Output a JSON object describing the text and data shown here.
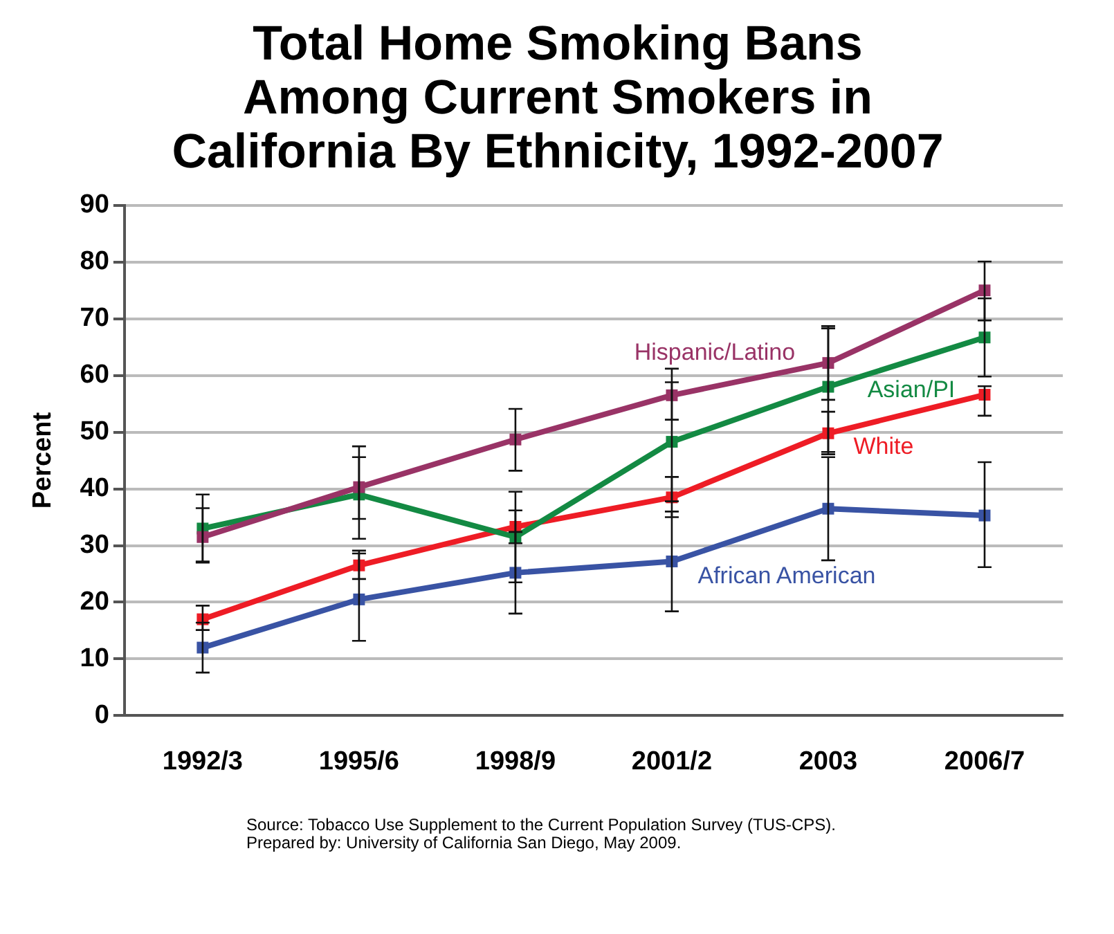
{
  "chart_data": {
    "type": "line",
    "title": "Total Home Smoking Bans Among Current Smokers in California By Ethnicity, 1992-2007",
    "ylabel": "Percent",
    "categories": [
      "1992/3",
      "1995/6",
      "1998/9",
      "2001/2",
      "2003",
      "2006/7"
    ],
    "series": [
      {
        "name": "Hispanic/Latino",
        "color": "#993366",
        "values": [
          31.5,
          40.3,
          48.7,
          56.5,
          62.2,
          75
        ],
        "errors": [
          [
            27.2,
            36.6
          ],
          [
            34.7,
            45.6
          ],
          [
            43.2,
            54.1
          ],
          [
            52.2,
            61.2
          ],
          [
            55.7,
            68.7
          ],
          [
            69.7,
            80.1
          ]
        ]
      },
      {
        "name": "Asian/PI",
        "color": "#138a43",
        "values": [
          33,
          39,
          31.5,
          48.3,
          58,
          66.7
        ],
        "errors": [
          [
            27,
            39
          ],
          [
            31.2,
            47.5
          ],
          [
            23.5,
            39.5
          ],
          [
            37.8,
            58.8
          ],
          [
            46.5,
            68.3
          ],
          [
            59.8,
            73.6
          ]
        ]
      },
      {
        "name": "White",
        "color": "#ee1c25",
        "values": [
          17,
          26.5,
          33.3,
          38.5,
          49.8,
          56.6
        ],
        "errors": [
          [
            15.1,
            19.4
          ],
          [
            24.1,
            29.1
          ],
          [
            30.4,
            36.2
          ],
          [
            35,
            42.1
          ],
          [
            46.1,
            53.6
          ],
          [
            52.9,
            58.1
          ]
        ]
      },
      {
        "name": "African American",
        "color": "#3953a4",
        "values": [
          12,
          20.5,
          25.2,
          27.2,
          36.5,
          35.3
        ],
        "errors": [
          [
            7.6,
            16.4
          ],
          [
            13.2,
            28.6
          ],
          [
            18,
            32.4
          ],
          [
            18.4,
            36
          ],
          [
            27.4,
            45.6
          ],
          [
            26.2,
            44.7
          ]
        ]
      }
    ],
    "ylim": [
      0,
      90
    ],
    "yticks": [
      0,
      10,
      20,
      30,
      40,
      50,
      60,
      70,
      80,
      90
    ],
    "grid": "y",
    "legend": false,
    "marker": "square",
    "line_style": "solid",
    "annotations": [
      "Source: Tobacco Use Supplement to the Current Population Survey (TUS-CPS).",
      "Prepared by: University of California San Diego, May 2009."
    ]
  }
}
